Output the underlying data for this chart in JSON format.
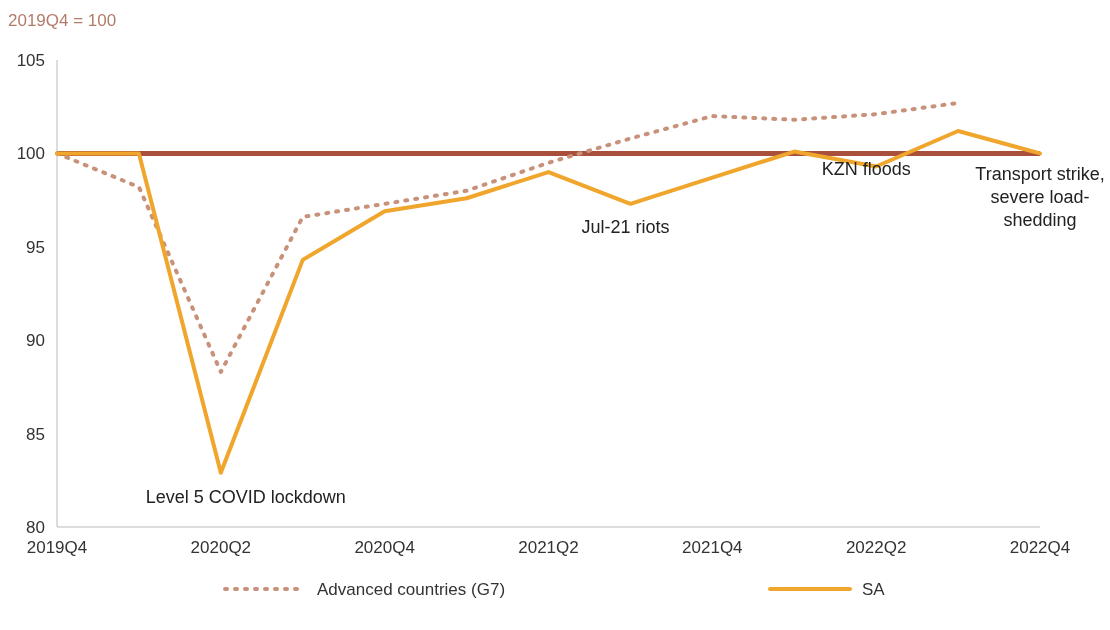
{
  "chart_data": {
    "type": "line",
    "subtitle": "2019Q4 = 100",
    "categories": [
      "2019Q4",
      null,
      "2020Q2",
      null,
      "2020Q4",
      null,
      "2021Q2",
      null,
      "2021Q4",
      null,
      "2022Q2",
      null,
      "2022Q4"
    ],
    "series": [
      {
        "name": "Advanced countries (G7)",
        "color": "#c8927a",
        "line_style": "dotted",
        "values": [
          100,
          98.2,
          88.3,
          96.6,
          97.3,
          98.0,
          99.5,
          100.8,
          102.0,
          101.8,
          102.1,
          102.7,
          null
        ]
      },
      {
        "name": "SA",
        "color": "#f0a52c",
        "line_style": "solid",
        "values": [
          100,
          100,
          82.9,
          94.3,
          96.9,
          97.6,
          99.0,
          97.3,
          98.7,
          100.1,
          99.3,
          101.2,
          100
        ]
      }
    ],
    "ylim": [
      80,
      105
    ],
    "yticks": [
      80,
      85,
      90,
      95,
      100,
      105
    ],
    "grid": false,
    "legend": "bottom",
    "marker": "none",
    "ref_lines": [
      {
        "axis": "y",
        "value": 100,
        "color": "#a8503c"
      }
    ],
    "annotations": [
      "Level 5 COVID lockdown",
      "Jul-21 riots",
      "KZN floods",
      "Transport strike, severe load-shedding"
    ]
  }
}
